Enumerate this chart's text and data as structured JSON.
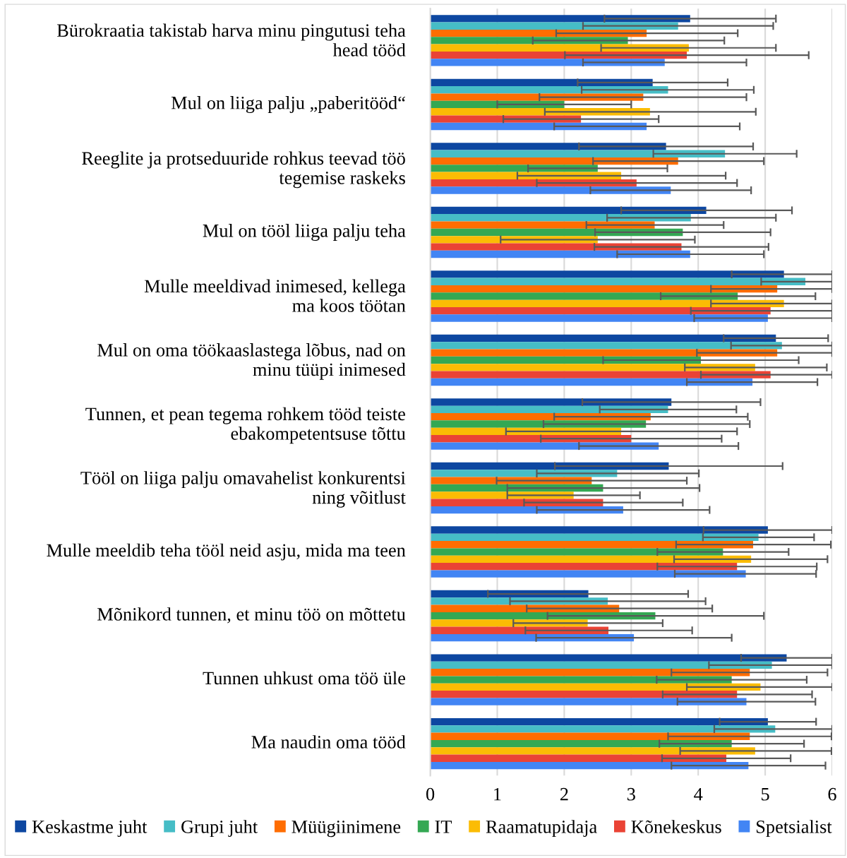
{
  "chart_data": {
    "type": "bar",
    "orientation": "horizontal",
    "categories": [
      "Bürokraatia takistab harva minu pingutusi teha\nhead tööd",
      "Mul on liiga palju „paberitööd“",
      "Reeglite ja protseduuride rohkus teevad töö\ntegemise raskeks",
      "Mul on tööl liiga palju teha",
      "Mulle meeldivad inimesed, kellega\nma koos töötan",
      "Mul on oma töökaaslastega lõbus, nad on\nminu tüüpi inimesed",
      "Tunnen, et pean tegema rohkem tööd teiste\nebakompetentsuse tõttu",
      "Tööl on liiga palju omavahelist konkurentsi\nning võitlust",
      "Mulle meeldib teha tööl neid asju, mida ma teen",
      "Mõnikord tunnen, et minu töö on mõttetu",
      "Tunnen uhkust oma töö üle",
      "Ma naudin oma tööd"
    ],
    "series": [
      {
        "name": "Keskastme juht",
        "color": "#0d47a1",
        "values": [
          3.88,
          3.32,
          3.52,
          4.12,
          5.28,
          5.16,
          3.6,
          3.56,
          5.04,
          2.36,
          5.32,
          5.04
        ],
        "errors": [
          [
            2.6,
            5.16
          ],
          [
            2.2,
            4.44
          ],
          [
            2.22,
            4.82
          ],
          [
            2.85,
            5.4
          ],
          [
            4.5,
            6
          ],
          [
            4.38,
            5.94
          ],
          [
            2.27,
            4.93
          ],
          [
            1.86,
            5.26
          ],
          [
            4.08,
            6
          ],
          [
            0.86,
            3.85
          ],
          [
            4.64,
            6
          ],
          [
            4.32,
            5.76
          ]
        ]
      },
      {
        "name": "Grupi juht",
        "color": "#46bdc6",
        "values": [
          3.7,
          3.55,
          4.4,
          3.89,
          5.6,
          5.25,
          3.55,
          2.79,
          4.9,
          2.65,
          5.1,
          5.15
        ],
        "errors": [
          [
            2.28,
            5.12
          ],
          [
            2.26,
            4.83
          ],
          [
            3.33,
            5.47
          ],
          [
            2.64,
            5.16
          ],
          [
            4.94,
            6
          ],
          [
            4.49,
            6
          ],
          [
            2.53,
            4.57
          ],
          [
            1.59,
            4.01
          ],
          [
            4.07,
            5.73
          ],
          [
            1.19,
            4.11
          ],
          [
            4.16,
            6
          ],
          [
            4.24,
            6
          ]
        ]
      },
      {
        "name": "Müügiinimene",
        "color": "#ff6d01",
        "values": [
          3.23,
          3.18,
          3.7,
          3.35,
          5.18,
          5.18,
          3.29,
          2.41,
          4.82,
          2.82,
          4.77,
          4.77
        ],
        "errors": [
          [
            1.88,
            4.59
          ],
          [
            1.63,
            4.72
          ],
          [
            2.43,
            4.98
          ],
          [
            2.33,
            4.38
          ],
          [
            4.19,
            6
          ],
          [
            3.98,
            6
          ],
          [
            1.85,
            4.74
          ],
          [
            0.99,
            3.83
          ],
          [
            3.67,
            5.98
          ],
          [
            1.44,
            4.21
          ],
          [
            3.6,
            5.93
          ],
          [
            3.55,
            5.99
          ]
        ]
      },
      {
        "name": "IT",
        "color": "#34a853",
        "values": [
          2.95,
          2.0,
          2.5,
          3.77,
          4.59,
          4.04,
          3.22,
          2.58,
          4.37,
          3.36,
          4.5,
          4.5
        ],
        "errors": [
          [
            1.53,
            4.39
          ],
          [
            1.0,
            3.0
          ],
          [
            1.46,
            3.54
          ],
          [
            2.46,
            5.08
          ],
          [
            3.44,
            5.75
          ],
          [
            2.58,
            5.5
          ],
          [
            1.69,
            4.77
          ],
          [
            1.15,
            4.02
          ],
          [
            3.39,
            5.35
          ],
          [
            1.75,
            4.98
          ],
          [
            3.38,
            5.62
          ],
          [
            3.42,
            5.58
          ]
        ]
      },
      {
        "name": "Raamatupidaja",
        "color": "#fbbc04",
        "values": [
          3.86,
          3.28,
          2.85,
          2.5,
          5.28,
          4.85,
          2.85,
          2.14,
          4.79,
          2.35,
          4.93,
          4.85
        ],
        "errors": [
          [
            2.55,
            5.16
          ],
          [
            1.71,
            4.86
          ],
          [
            1.3,
            4.41
          ],
          [
            1.05,
            3.95
          ],
          [
            4.19,
            6
          ],
          [
            3.8,
            5.92
          ],
          [
            1.13,
            4.58
          ],
          [
            1.15,
            3.13
          ],
          [
            3.64,
            5.93
          ],
          [
            1.24,
            3.47
          ],
          [
            3.83,
            6
          ],
          [
            3.73,
            5.99
          ]
        ]
      },
      {
        "name": "Kõnekeskus",
        "color": "#ea4335",
        "values": [
          3.83,
          2.25,
          3.08,
          3.75,
          5.08,
          5.08,
          3.0,
          2.58,
          4.58,
          2.66,
          4.58,
          4.42
        ],
        "errors": [
          [
            2.01,
            5.65
          ],
          [
            1.09,
            3.41
          ],
          [
            1.59,
            4.58
          ],
          [
            2.45,
            5.05
          ],
          [
            3.89,
            6
          ],
          [
            4.04,
            6
          ],
          [
            1.65,
            4.35
          ],
          [
            1.4,
            3.77
          ],
          [
            3.39,
            5.77
          ],
          [
            1.42,
            3.91
          ],
          [
            3.47,
            5.7
          ],
          [
            3.46,
            5.38
          ]
        ]
      },
      {
        "name": "Spetsialist",
        "color": "#4285f4",
        "values": [
          3.5,
          3.23,
          3.59,
          3.88,
          5.04,
          4.81,
          3.41,
          2.88,
          4.71,
          3.04,
          4.72,
          4.75
        ],
        "errors": [
          [
            2.28,
            4.72
          ],
          [
            1.85,
            4.62
          ],
          [
            2.39,
            4.79
          ],
          [
            2.79,
            4.98
          ],
          [
            3.94,
            6
          ],
          [
            3.83,
            5.78
          ],
          [
            2.22,
            4.6
          ],
          [
            1.59,
            4.17
          ],
          [
            3.65,
            5.76
          ],
          [
            1.58,
            4.5
          ],
          [
            3.69,
            5.75
          ],
          [
            3.6,
            5.9
          ]
        ]
      }
    ],
    "xlim": [
      0,
      6
    ],
    "xticks": [
      0,
      1,
      2,
      3,
      4,
      5,
      6
    ],
    "grid": "x",
    "legend": "bottom"
  }
}
